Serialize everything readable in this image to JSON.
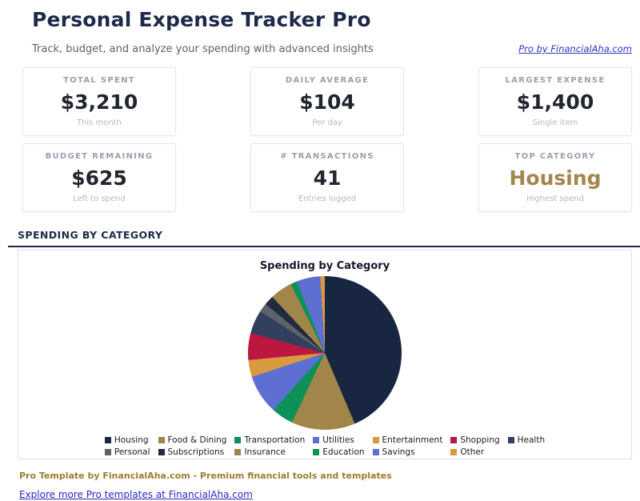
{
  "header": {
    "title": "Personal Expense Tracker Pro",
    "subtitle": "Track, budget, and analyze your spending with advanced insights",
    "link_label": "Pro by FinancialAha.com"
  },
  "stats": [
    {
      "label": "TOTAL SPENT",
      "value": "$3,210",
      "sub": "This month"
    },
    {
      "label": "DAILY AVERAGE",
      "value": "$104",
      "sub": "Per day"
    },
    {
      "label": "LARGEST EXPENSE",
      "value": "$1,400",
      "sub": "Single item"
    },
    {
      "label": "BUDGET REMAINING",
      "value": "$625",
      "sub": "Left to spend"
    },
    {
      "label": "# TRANSACTIONS",
      "value": "41",
      "sub": "Entries logged"
    },
    {
      "label": "TOP CATEGORY",
      "value": "Housing",
      "sub": "Highest spend",
      "accent": "#a5854e"
    }
  ],
  "section": {
    "heading": "SPENDING BY CATEGORY"
  },
  "chart_data": {
    "type": "pie",
    "title": "Spending by Category",
    "categories": [
      "Housing",
      "Food & Dining",
      "Transportation",
      "Utilities",
      "Entertainment",
      "Shopping",
      "Health",
      "Personal",
      "Subscriptions",
      "Insurance",
      "Education",
      "Savings",
      "Other"
    ],
    "values": [
      1400,
      430,
      150,
      265,
      115,
      180,
      160,
      60,
      65,
      150,
      45,
      160,
      30
    ],
    "colors": [
      "#182642",
      "#a28549",
      "#0d9157",
      "#5d6fd2",
      "#d9993e",
      "#bb1741",
      "#31405e",
      "#5b6269",
      "#222a3e",
      "#a28549",
      "#0d9157",
      "#5d6fd2",
      "#d9993e"
    ],
    "total": 3210,
    "start_angle_deg": 0,
    "direction": "clockwise",
    "legend_position": "bottom",
    "legend_rows": [
      7,
      6
    ]
  },
  "footer": {
    "line1": "Pro Template by FinancialAha.com - Premium financial tools and templates",
    "link_label": "Explore more Pro templates at FinancialAha.com"
  }
}
